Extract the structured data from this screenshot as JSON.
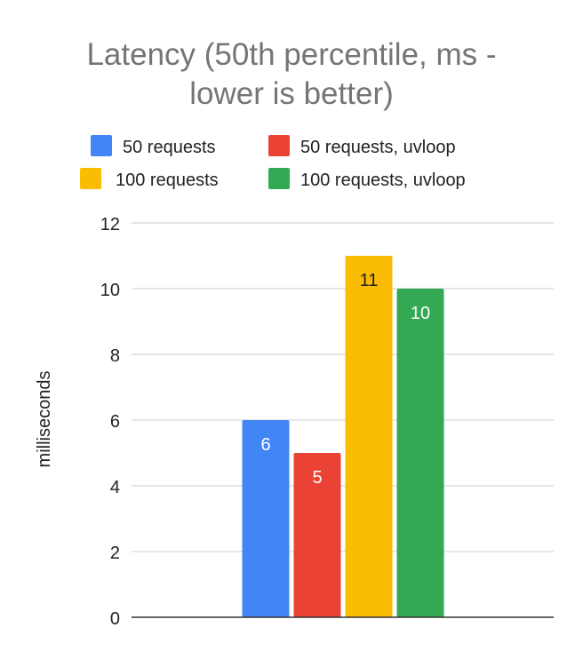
{
  "chart_data": {
    "type": "bar",
    "title_lines": [
      "Latency (50th percentile, ms -",
      "lower is better)"
    ],
    "ylabel": "milliseconds",
    "xlabel": "",
    "ylim": [
      0,
      12
    ],
    "yticks": [
      0,
      2,
      4,
      6,
      8,
      10,
      12
    ],
    "grid": true,
    "legend_position": "top",
    "categories": [
      ""
    ],
    "series": [
      {
        "name": "50 requests",
        "values": [
          6
        ],
        "color": "#4285F4",
        "label_color": "#ffffff"
      },
      {
        "name": "50 requests, uvloop",
        "values": [
          5
        ],
        "color": "#EA4335",
        "label_color": "#ffffff"
      },
      {
        "name": "100 requests",
        "values": [
          11
        ],
        "color": "#FBBC04",
        "label_color": "#202124"
      },
      {
        "name": "100 requests, uvloop",
        "values": [
          10
        ],
        "color": "#34A853",
        "label_color": "#ffffff"
      }
    ]
  }
}
